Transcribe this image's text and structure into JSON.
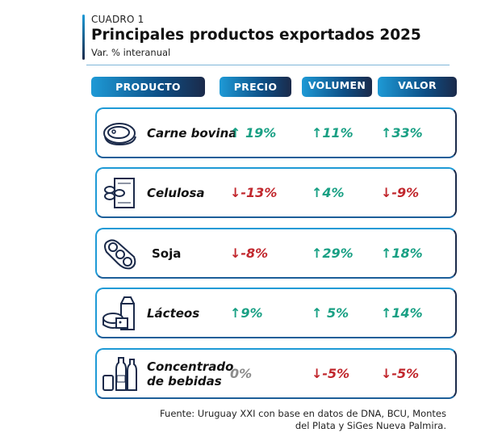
{
  "header": {
    "label": "CUADRO 1",
    "title": "Principales productos exportados 2025",
    "subtitle": "Var. % interanual"
  },
  "columns": [
    "PRODUCTO",
    "PRECIO",
    "VOLUMEN",
    "VALOR"
  ],
  "colors": {
    "up": "#19a084",
    "down": "#c1272d",
    "neutral": "#8c8c8c"
  },
  "rows": [
    {
      "name": "Carne bovina",
      "icon": "steak-icon",
      "precio": "↑ 19%",
      "volumen": "↑11%",
      "valor": "↑33%",
      "dirs": [
        "up",
        "up",
        "up"
      ]
    },
    {
      "name": "Celulosa",
      "icon": "paper-roll-icon",
      "precio": "↓-13%",
      "volumen": "↑4%",
      "valor": "↓-9%",
      "dirs": [
        "down",
        "up",
        "down"
      ]
    },
    {
      "name": "Soja",
      "icon": "soybean-icon",
      "precio": "↓-8%",
      "volumen": "↑29%",
      "valor": "↑18%",
      "dirs": [
        "down",
        "up",
        "up"
      ]
    },
    {
      "name": "Lácteos",
      "icon": "dairy-icon",
      "precio": "↑9%",
      "volumen": "↑ 5%",
      "valor": "↑14%",
      "dirs": [
        "up",
        "up",
        "up"
      ]
    },
    {
      "name": "Concentrado de bebidas",
      "icon": "beverages-icon",
      "precio": "0%",
      "volumen": "↓-5%",
      "valor": "↓-5%",
      "dirs": [
        "flat",
        "down",
        "down"
      ]
    }
  ],
  "footer": {
    "line1": "Fuente: Uruguay XXI con base en datos de DNA, BCU, Montes",
    "line2": "del Plata y SiGes Nueva Palmira."
  }
}
